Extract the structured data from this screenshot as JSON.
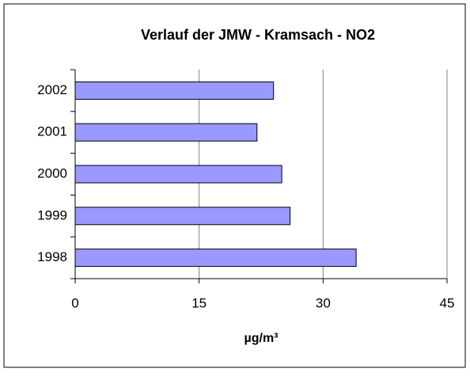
{
  "chart_data": {
    "type": "hbar",
    "title": "Verlauf der JMW - Kramsach - NO2",
    "x_label": "µg/m³",
    "categories": [
      "1998",
      "1999",
      "2000",
      "2001",
      "2002"
    ],
    "values": [
      34,
      26,
      25,
      22,
      24
    ],
    "color": "#9999ff",
    "xlim": [
      0,
      45
    ],
    "xticks": [
      0,
      15,
      30,
      45
    ],
    "grid": true
  }
}
